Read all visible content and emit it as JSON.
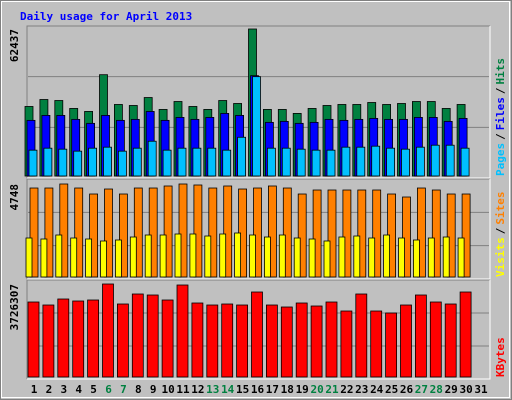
{
  "chart_data": [
    {
      "type": "bar",
      "title": "Daily usage for April 2013",
      "ylim": [
        0,
        62437
      ],
      "yticks": [
        62437
      ],
      "legend_separator": "/",
      "series": [
        {
          "name": "Hits",
          "color": "#008040",
          "values": [
            29530,
            32490,
            32060,
            28690,
            27420,
            43030,
            30380,
            29950,
            33330,
            28270,
            31640,
            29530,
            28270,
            32060,
            30800,
            62437,
            28270,
            28270,
            26580,
            28690,
            29950,
            30380,
            30380,
            31220,
            30380,
            30800,
            31640,
            31640,
            28690,
            30380,
            null
          ]
        },
        {
          "name": "Files",
          "color": "#0000ff",
          "values": [
            23630,
            25740,
            25740,
            24050,
            22360,
            25740,
            23630,
            24050,
            27420,
            23630,
            24890,
            24050,
            24890,
            26580,
            25740,
            42610,
            22780,
            23200,
            22360,
            22780,
            24050,
            23630,
            24050,
            24470,
            24050,
            24050,
            24890,
            24890,
            23200,
            24470,
            null
          ]
        },
        {
          "name": "Pages",
          "color": "#00c0ff",
          "values": [
            10970,
            11810,
            11390,
            10550,
            11810,
            12240,
            10550,
            11810,
            14770,
            10970,
            11810,
            11810,
            11810,
            10970,
            16450,
            42190,
            11810,
            11810,
            11390,
            10970,
            10970,
            12240,
            12240,
            12660,
            11810,
            11390,
            12240,
            13080,
            13080,
            11810,
            null
          ]
        }
      ]
    },
    {
      "type": "bar",
      "ylim": [
        0,
        4748
      ],
      "yticks": [
        4748
      ],
      "legend_separator": "/",
      "series": [
        {
          "name": "Sites",
          "color": "#ff8000",
          "values": [
            4543,
            4543,
            4748,
            4543,
            4237,
            4492,
            4237,
            4543,
            4543,
            4646,
            4748,
            4697,
            4543,
            4646,
            4492,
            4543,
            4646,
            4543,
            4237,
            4441,
            4441,
            4441,
            4441,
            4441,
            4237,
            4084,
            4543,
            4441,
            4237,
            4237,
            null
          ]
        },
        {
          "name": "Visits",
          "color": "#ffff00",
          "values": [
            1991,
            1940,
            2144,
            1991,
            1940,
            1838,
            1889,
            2042,
            2144,
            2144,
            2195,
            2195,
            2093,
            2195,
            2246,
            2144,
            2042,
            2144,
            1991,
            1940,
            1838,
            2042,
            2093,
            1991,
            2144,
            1991,
            1889,
            1991,
            2042,
            1991,
            null
          ]
        }
      ]
    },
    {
      "type": "bar",
      "ylim": [
        0,
        3726307
      ],
      "yticks": [
        3726307
      ],
      "categories": [
        "1",
        "2",
        "3",
        "4",
        "5",
        "6",
        "7",
        "8",
        "9",
        "10",
        "11",
        "12",
        "13",
        "14",
        "15",
        "16",
        "17",
        "18",
        "19",
        "20",
        "21",
        "22",
        "23",
        "24",
        "25",
        "26",
        "27",
        "28",
        "29",
        "30",
        "31"
      ],
      "category_colors": [
        "#000000",
        "#000000",
        "#000000",
        "#000000",
        "#000000",
        "#008040",
        "#008040",
        "#000000",
        "#000000",
        "#000000",
        "#000000",
        "#000000",
        "#008040",
        "#008040",
        "#000000",
        "#000000",
        "#000000",
        "#000000",
        "#000000",
        "#008040",
        "#008040",
        "#000000",
        "#000000",
        "#000000",
        "#000000",
        "#000000",
        "#008040",
        "#008040",
        "#000000",
        "#000000",
        "#000000"
      ],
      "series": [
        {
          "name": "KBytes",
          "color": "#ff0000",
          "values": [
            3005000,
            2884800,
            3125200,
            3045100,
            3085200,
            3726307,
            2924900,
            3325600,
            3285500,
            3085200,
            3686200,
            2965000,
            2884800,
            2924900,
            2884800,
            3405700,
            2884800,
            2804700,
            2965000,
            2844800,
            3005000,
            2644400,
            3325600,
            2644400,
            2564300,
            2884800,
            3285500,
            3005000,
            2924900,
            3405700,
            null
          ]
        }
      ]
    }
  ]
}
